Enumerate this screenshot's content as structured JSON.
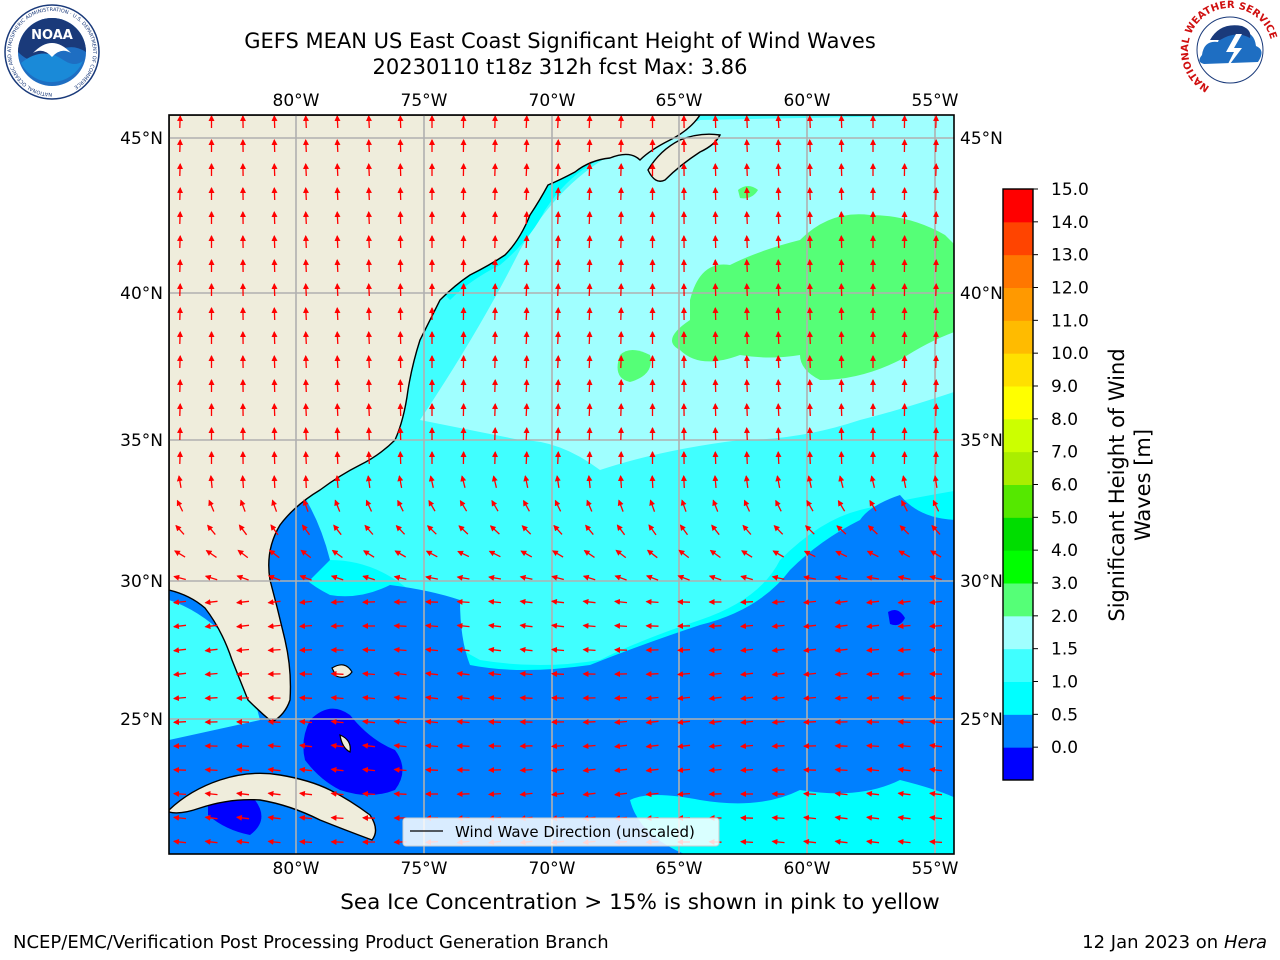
{
  "header": {
    "title_line1": "GEFS MEAN US East Coast Significant Height of Wind Waves",
    "title_line2": "20230110 t18z 312h fcst   Max: 3.86"
  },
  "logos": {
    "left": {
      "name": "noaa-logo",
      "text": "NOAA",
      "ring_text": "NATIONAL OCEANIC AND ATMOSPHERIC ADMINISTRATION · U.S. DEPARTMENT OF COMMERCE"
    },
    "right": {
      "name": "nws-logo",
      "ring_text": "NATIONAL WEATHER SERVICE"
    }
  },
  "map": {
    "lon_labels": [
      "80°W",
      "75°W",
      "70°W",
      "65°W",
      "60°W",
      "55°W"
    ],
    "lat_labels": [
      "45°N",
      "40°N",
      "35°N",
      "30°N",
      "25°N"
    ],
    "lon_range": [
      -85,
      -54.3
    ],
    "lat_range": [
      20.5,
      46
    ],
    "land_color": "#efeddc",
    "grid_color": "#b0b0b0",
    "arrow_color": "#ff0000",
    "legend_label": "Wind Wave Direction (unscaled)"
  },
  "colorbar": {
    "label": "Significant Height of Wind Waves [m]",
    "label_line1": "Significant Height of Wind",
    "label_line2": "Waves [m]",
    "ticks": [
      "15.0",
      "14.0",
      "13.0",
      "12.0",
      "11.0",
      "10.0",
      "9.0",
      "8.0",
      "7.0",
      "6.0",
      "5.0",
      "4.0",
      "3.0",
      "2.0",
      "1.5",
      "1.0",
      "0.5",
      "0.0"
    ],
    "colors_bottom_to_top": [
      "#0000ff",
      "#0080ff",
      "#00ffff",
      "#40ffff",
      "#a0ffff",
      "#55ff77",
      "#00ff00",
      "#00dd00",
      "#55e800",
      "#aaee00",
      "#ccff00",
      "#ffff00",
      "#ffe000",
      "#ffbb00",
      "#ff9900",
      "#ff7700",
      "#ff4400",
      "#ff0000"
    ]
  },
  "caption": "Sea Ice Concentration > 15% is shown in pink to yellow",
  "footer": {
    "left": "NCEP/EMC/Verification Post Processing Product Generation Branch",
    "date": "12 Jan 2023 on ",
    "host": "Hera"
  }
}
